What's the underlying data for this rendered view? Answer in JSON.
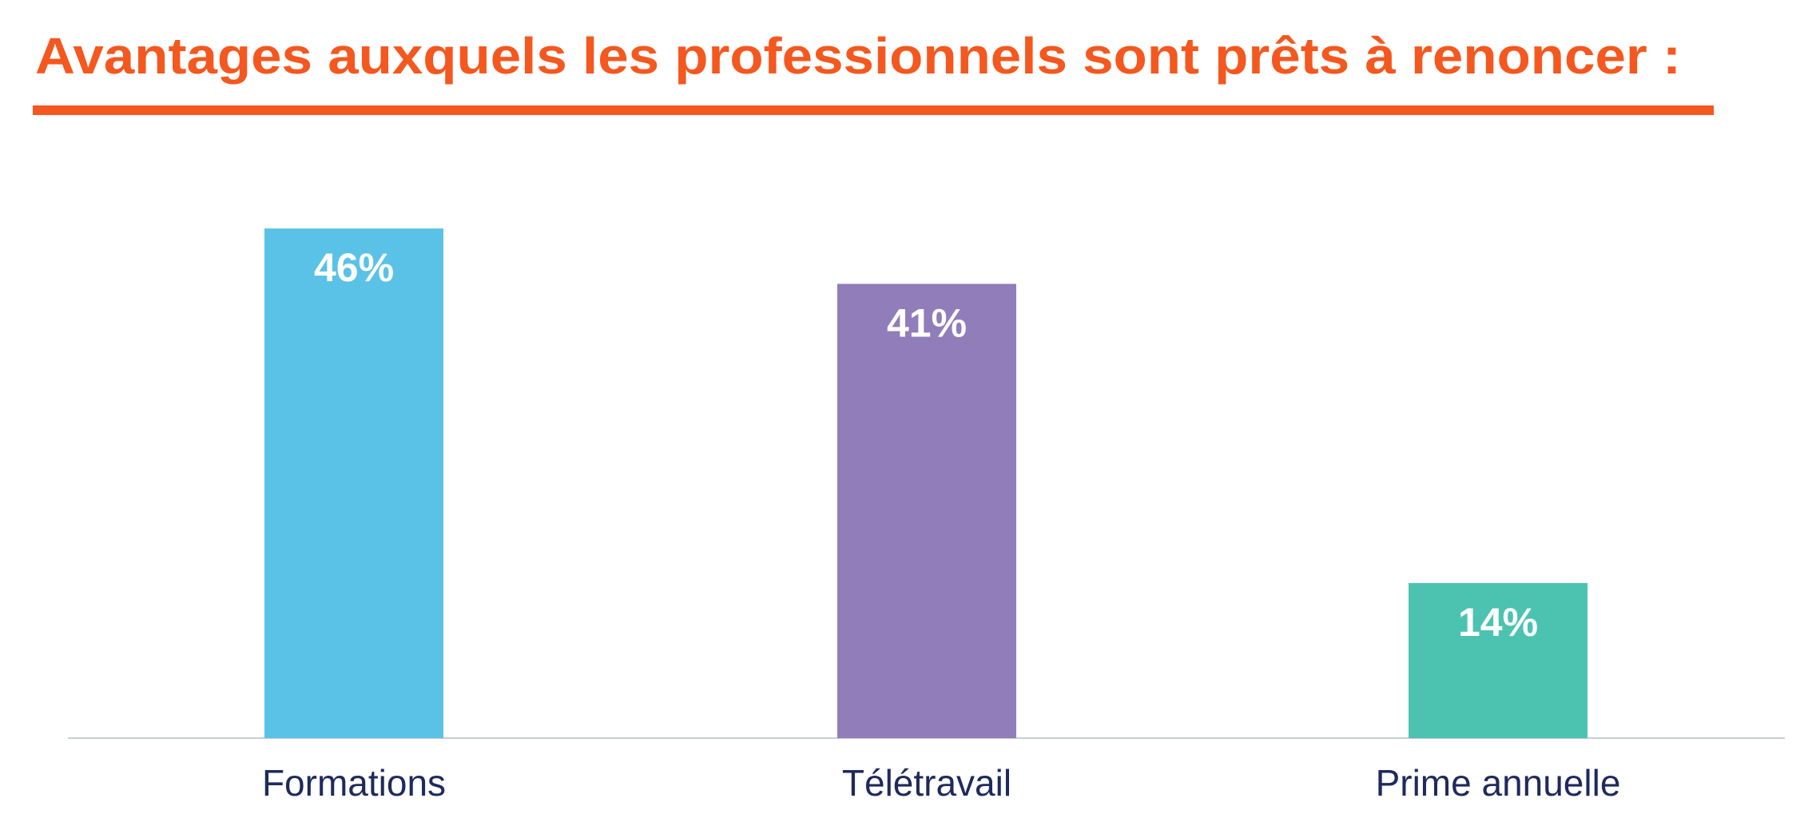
{
  "chart_data": {
    "type": "bar",
    "title": "Avantages auxquels les professionnels sont prêts à renoncer :",
    "categories": [
      "Formations",
      "Télétravail",
      "Prime annuelle"
    ],
    "values": [
      46,
      41,
      14
    ],
    "value_labels": [
      "46%",
      "41%",
      "14%"
    ],
    "colors": [
      "#5bc2e7",
      "#917dba",
      "#4cc3b1"
    ]
  }
}
